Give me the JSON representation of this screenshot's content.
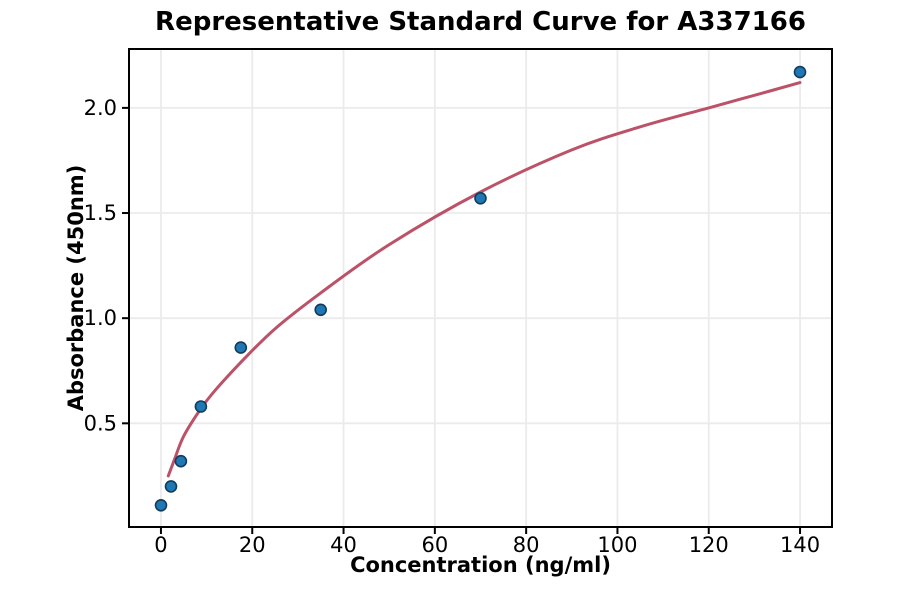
{
  "chart_data": {
    "type": "scatter",
    "title": "Representative Standard Curve for A337166",
    "xlabel": "Concentration (ng/ml)",
    "ylabel": "Absorbance (450nm)",
    "xlim": [
      -7,
      147
    ],
    "ylim": [
      0.007,
      2.28
    ],
    "grid": true,
    "legend": false,
    "x_ticks": {
      "values": [
        0,
        20,
        40,
        60,
        80,
        100,
        120,
        140
      ],
      "labels": [
        "0",
        "20",
        "40",
        "60",
        "80",
        "100",
        "120",
        "140"
      ]
    },
    "y_ticks": {
      "values": [
        0.5,
        1.0,
        1.5,
        2.0
      ],
      "labels": [
        "0.5",
        "1.0",
        "1.5",
        "2.0"
      ]
    },
    "series": [
      {
        "name": "standard-points",
        "type": "scatter",
        "points": [
          [
            0,
            0.11
          ],
          [
            2.19,
            0.2
          ],
          [
            4.38,
            0.32
          ],
          [
            8.75,
            0.58
          ],
          [
            17.5,
            0.86
          ],
          [
            35,
            1.04
          ],
          [
            70,
            1.57
          ],
          [
            140,
            2.17
          ]
        ]
      },
      {
        "name": "fitted-curve",
        "type": "line",
        "points": [
          [
            1.6,
            0.25
          ],
          [
            3,
            0.33
          ],
          [
            5,
            0.44
          ],
          [
            8.75,
            0.57
          ],
          [
            12,
            0.66
          ],
          [
            17.5,
            0.79
          ],
          [
            25,
            0.95
          ],
          [
            35,
            1.12
          ],
          [
            50,
            1.35
          ],
          [
            70,
            1.6
          ],
          [
            90,
            1.8
          ],
          [
            105,
            1.91
          ],
          [
            120,
            2.0
          ],
          [
            130,
            2.06
          ],
          [
            140,
            2.12
          ]
        ]
      }
    ],
    "colors": {
      "marker_fill": "#1f77b4",
      "marker_edge": "#123c5c",
      "curve": "#bc5268",
      "grid": "#ebebeb",
      "axis": "#000000",
      "text": "#000000",
      "background": "#ffffff"
    }
  }
}
